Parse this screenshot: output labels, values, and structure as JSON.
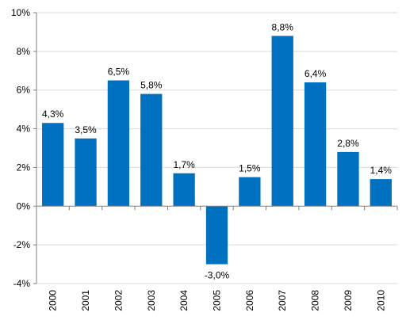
{
  "chart_data": {
    "type": "bar",
    "categories": [
      "2000",
      "2001",
      "2002",
      "2003",
      "2004",
      "2005",
      "2006",
      "2007",
      "2008",
      "2009",
      "2010"
    ],
    "values": [
      4.3,
      3.5,
      6.5,
      5.8,
      1.7,
      -3.0,
      1.5,
      8.8,
      6.4,
      2.8,
      1.4
    ],
    "data_labels": [
      "4,3%",
      "3,5%",
      "6,5%",
      "5,8%",
      "1,7%",
      "-3,0%",
      "1,5%",
      "8,8%",
      "6,4%",
      "2,8%",
      "1,4%"
    ],
    "y_ticks": [
      -4,
      -2,
      0,
      2,
      4,
      6,
      8,
      10
    ],
    "y_tick_labels": [
      "-4%",
      "-2%",
      "0%",
      "2%",
      "4%",
      "6%",
      "8%",
      "10%"
    ],
    "ylim": [
      -4,
      10
    ],
    "grid": true,
    "legend": "none",
    "title": "",
    "xlabel": "",
    "ylabel": "",
    "colors": {
      "bar": "#0070C0",
      "grid": "#D9D9D9",
      "axis": "#808080"
    }
  }
}
